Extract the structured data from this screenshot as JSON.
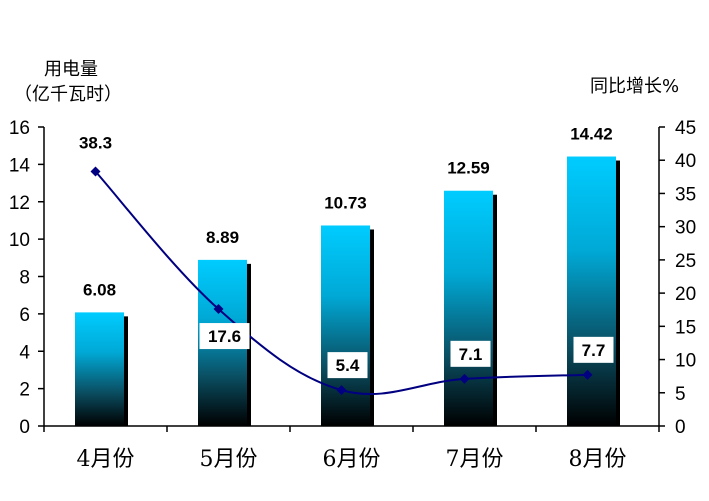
{
  "chart_data": {
    "type": "bar",
    "categories": [
      "4月份",
      "5月份",
      "6月份",
      "7月份",
      "8月份"
    ],
    "ylabel_line1": "用电量",
    "ylabel_line2": "（亿千瓦时）",
    "y2label": "同比增长%",
    "ylim": [
      0,
      16
    ],
    "yticks": [
      0,
      2,
      4,
      6,
      8,
      10,
      12,
      14,
      16
    ],
    "y2lim": [
      0,
      45
    ],
    "y2ticks": [
      0,
      5,
      10,
      15,
      20,
      25,
      30,
      35,
      40,
      45
    ],
    "series": [
      {
        "type": "bar",
        "values": [
          6.08,
          8.89,
          10.73,
          12.59,
          14.42
        ],
        "labels": [
          "6.08",
          "8.89",
          "10.73",
          "12.59",
          "14.42"
        ],
        "color_top": "#00CCFF",
        "color_bottom": "#000000"
      },
      {
        "type": "line",
        "axis": "right",
        "values": [
          38.3,
          17.6,
          5.4,
          7.1,
          7.7
        ],
        "labels": [
          "38.3",
          "17.6",
          "5.4",
          "7.1",
          "7.7"
        ],
        "color": "#000080"
      }
    ],
    "grid": false,
    "legend": "none"
  }
}
